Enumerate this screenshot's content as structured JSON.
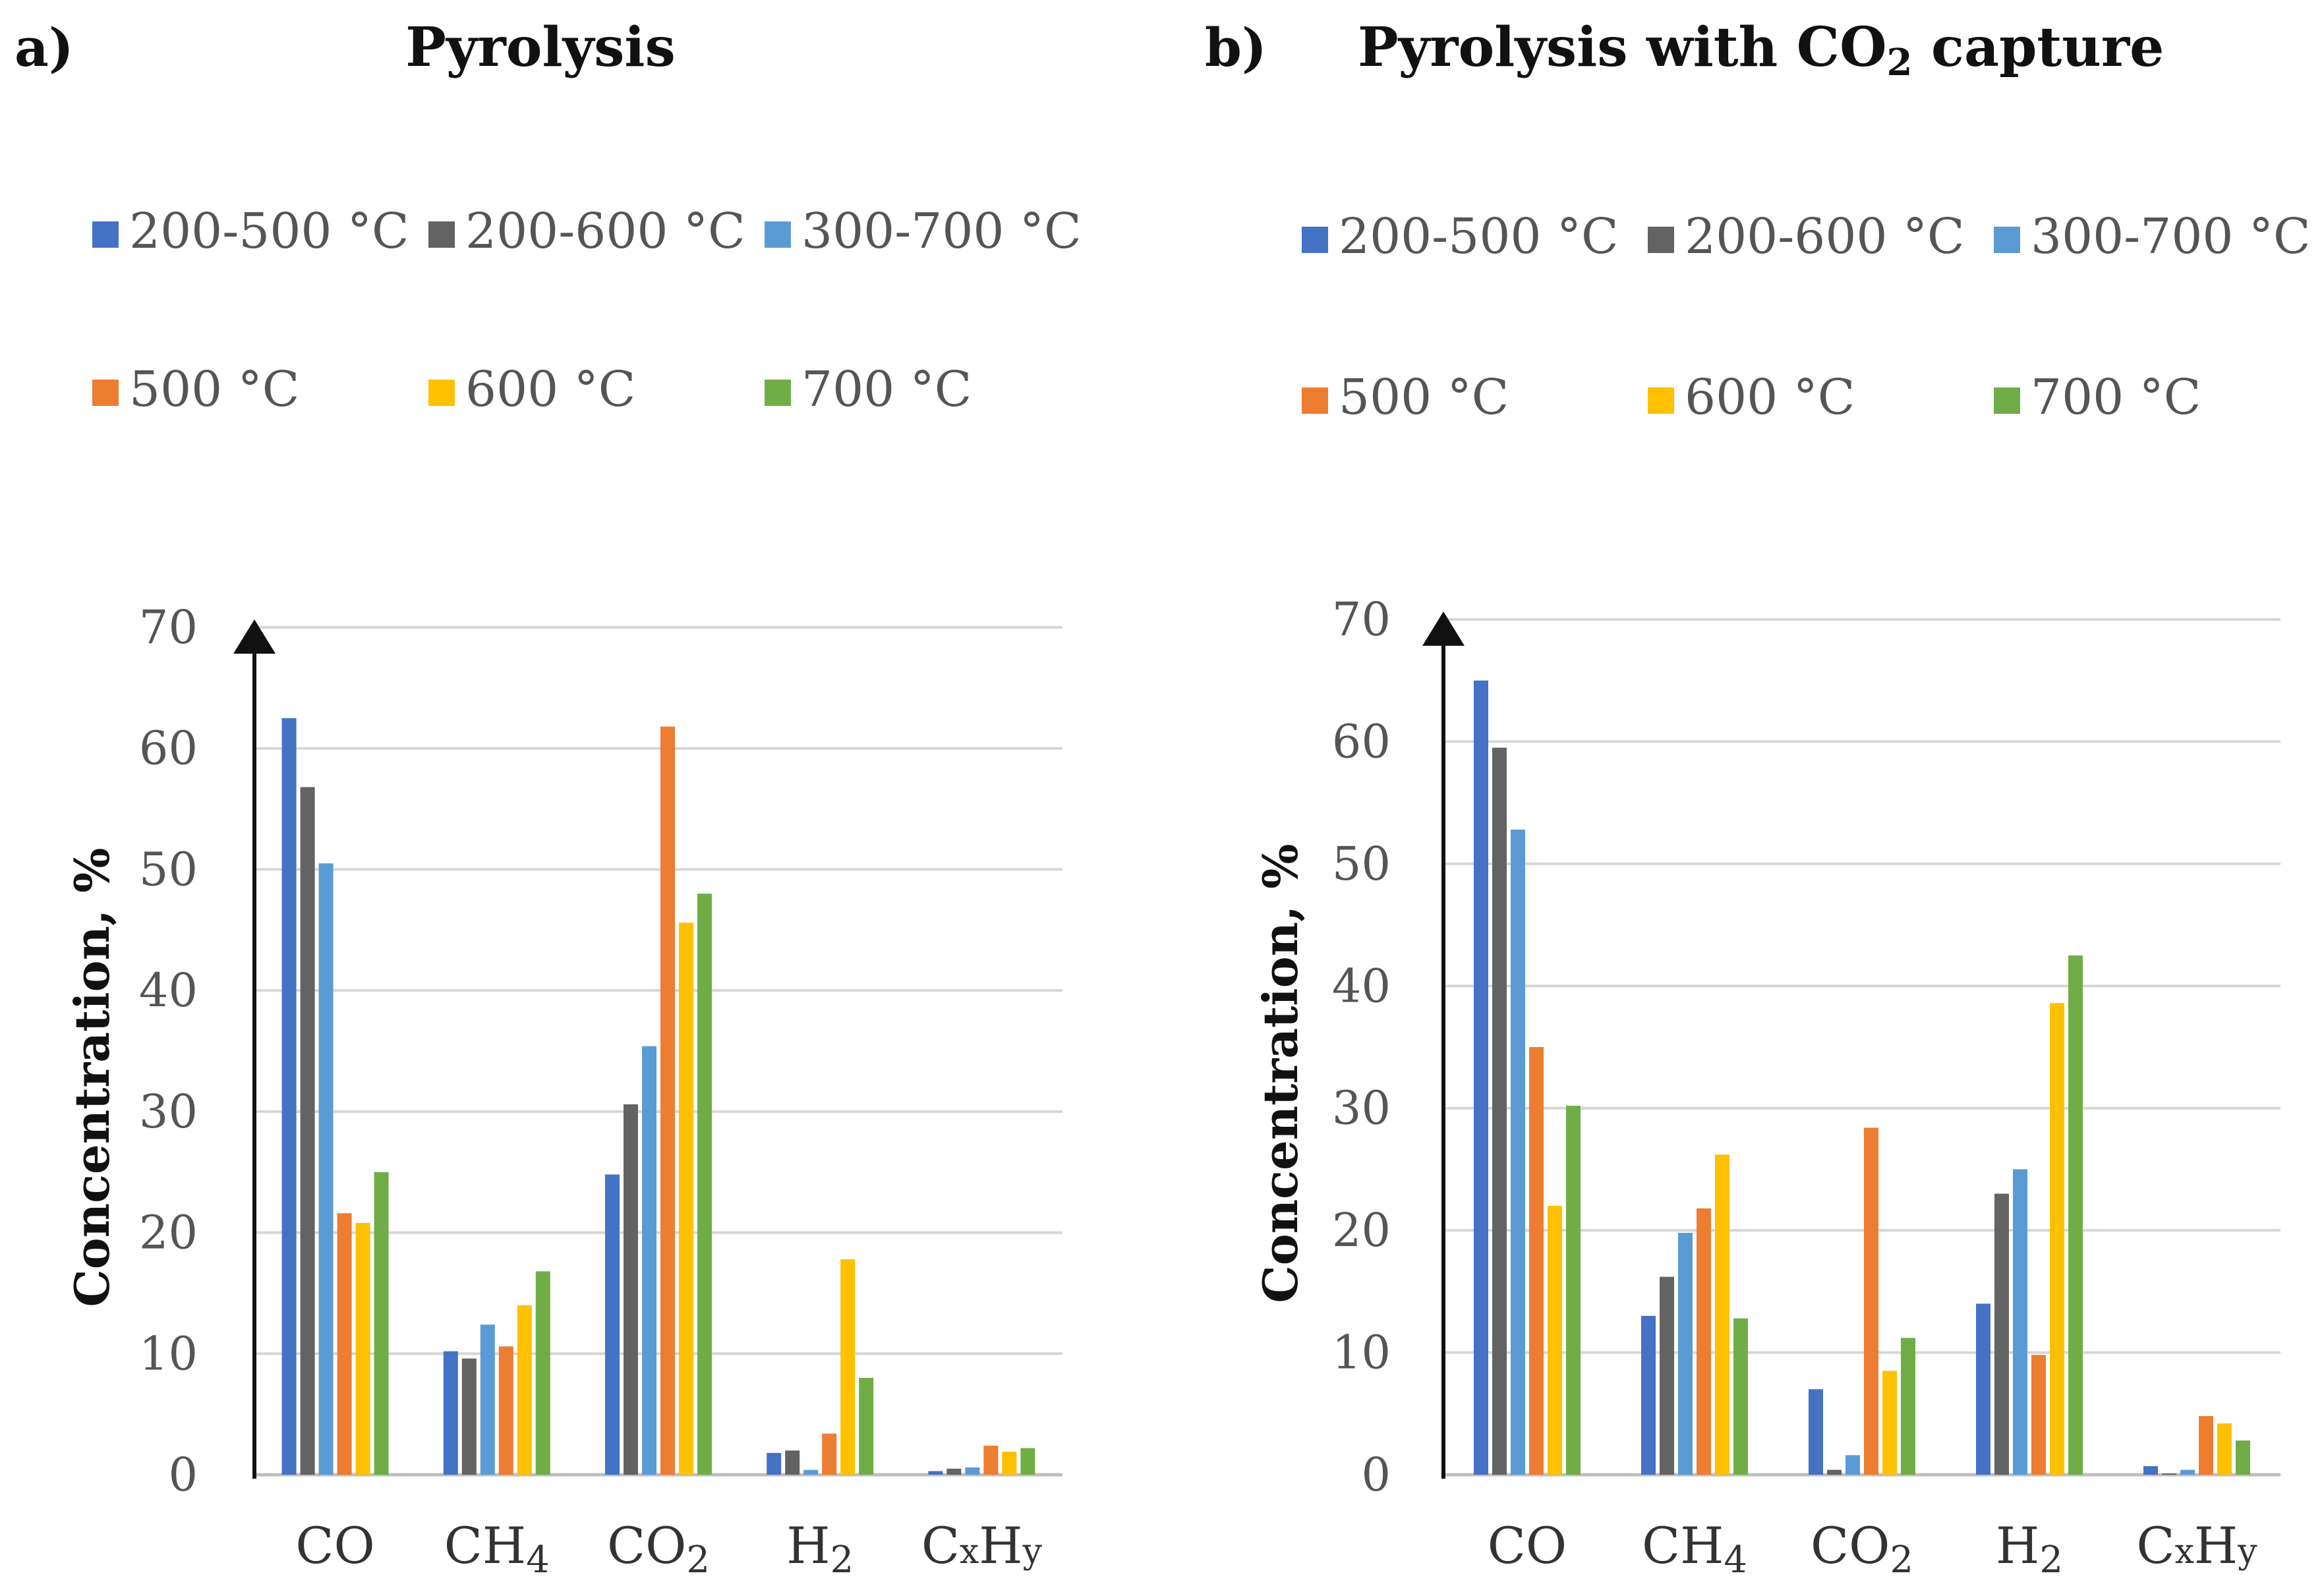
{
  "chart_data": [
    {
      "type": "bar",
      "panel_label": "a)",
      "title": "Pyrolysis",
      "ylabel": "Concentration, %",
      "ylim": [
        0,
        70
      ],
      "yticks": [
        0,
        10,
        20,
        30,
        40,
        50,
        60,
        70
      ],
      "grid": true,
      "legend_position": "top",
      "categories": [
        {
          "base": "CO",
          "sub": "",
          "sub_pos": ""
        },
        {
          "base": "CH",
          "sub": "4",
          "sub_pos": "end"
        },
        {
          "base": "CO",
          "sub": "2",
          "sub_pos": "end"
        },
        {
          "base": "H",
          "sub": "2",
          "sub_pos": "end"
        },
        {
          "base": "CxHy",
          "sub": "",
          "sub_pos": "xy"
        }
      ],
      "series": [
        {
          "name": "200-500 °C",
          "color": "#4472C4",
          "values": [
            62.5,
            10.2,
            24.8,
            1.8,
            0.3
          ]
        },
        {
          "name": "200-600 °C",
          "color": "#636363",
          "values": [
            56.8,
            9.6,
            30.6,
            2.0,
            0.5
          ]
        },
        {
          "name": "300-700 °C",
          "color": "#5B9BD5",
          "values": [
            50.5,
            12.4,
            35.4,
            0.4,
            0.6
          ]
        },
        {
          "name": "500 °C",
          "color": "#ED7D31",
          "values": [
            21.6,
            10.6,
            61.8,
            3.4,
            2.4
          ]
        },
        {
          "name": "600 °C",
          "color": "#FFC000",
          "values": [
            20.8,
            14.0,
            45.6,
            17.8,
            1.9
          ]
        },
        {
          "name": "700 °C",
          "color": "#70AD47",
          "values": [
            25.0,
            16.8,
            48.0,
            8.0,
            2.2
          ]
        }
      ]
    },
    {
      "type": "bar",
      "panel_label": "b)",
      "title": "Pyrolysis  with CO",
      "title_sub": "2",
      "title_suffix": " capture",
      "ylabel": "Concentration, %",
      "ylim": [
        0,
        70
      ],
      "yticks": [
        0,
        10,
        20,
        30,
        40,
        50,
        60,
        70
      ],
      "grid": true,
      "legend_position": "top",
      "categories": [
        {
          "base": "CO",
          "sub": "",
          "sub_pos": ""
        },
        {
          "base": "CH",
          "sub": "4",
          "sub_pos": "end"
        },
        {
          "base": "CO",
          "sub": "2",
          "sub_pos": "end"
        },
        {
          "base": "H",
          "sub": "2",
          "sub_pos": "end"
        },
        {
          "base": "CxHy",
          "sub": "",
          "sub_pos": "xy"
        }
      ],
      "series": [
        {
          "name": "200-500 °C",
          "color": "#4472C4",
          "values": [
            65.0,
            13.0,
            7.0,
            14.0,
            0.7
          ]
        },
        {
          "name": "200-600 °C",
          "color": "#636363",
          "values": [
            59.5,
            16.2,
            0.4,
            23.0,
            0.1
          ]
        },
        {
          "name": "300-700 °C",
          "color": "#5B9BD5",
          "values": [
            52.8,
            19.8,
            1.6,
            25.0,
            0.4
          ]
        },
        {
          "name": "500 °C",
          "color": "#ED7D31",
          "values": [
            35.0,
            21.8,
            28.4,
            9.8,
            4.8
          ]
        },
        {
          "name": "600 °C",
          "color": "#FFC000",
          "values": [
            22.0,
            26.2,
            8.5,
            38.6,
            4.2
          ]
        },
        {
          "name": "700 °C",
          "color": "#70AD47",
          "values": [
            30.2,
            12.8,
            11.2,
            42.5,
            2.8
          ]
        }
      ]
    }
  ]
}
